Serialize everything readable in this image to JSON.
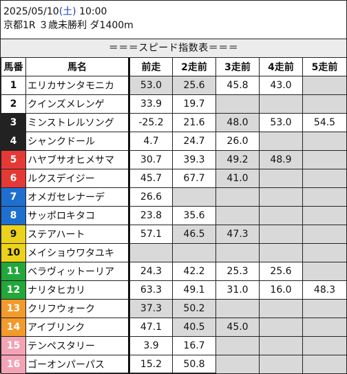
{
  "header": {
    "date": "2025/05/10",
    "dow_open": "(",
    "dow": "土",
    "dow_close": ")",
    "time": "10:00",
    "race": "京都1R ３歳未勝利 ダ1400m"
  },
  "banner": "＝＝＝スピード指数表＝＝＝",
  "columns": [
    "馬番",
    "馬名",
    "前走",
    "2走前",
    "3走前",
    "4走前",
    "5走前"
  ],
  "frame_colors": {
    "1": "#ffffff",
    "2": "#ffffff",
    "3": "#222222",
    "4": "#222222",
    "5": "#e53935",
    "6": "#e53935",
    "7": "#1e6fd0",
    "8": "#1e6fd0",
    "9": "#ecd21a",
    "10": "#ecd21a",
    "11": "#22a83a",
    "12": "#22a83a",
    "13": "#f39a2b",
    "14": "#f39a2b",
    "15": "#f4a3b4",
    "16": "#f4a3b4"
  },
  "rows": [
    {
      "num": "1",
      "name": "エリカサンタモニカ",
      "vals": [
        "53.0",
        "25.6",
        "45.8",
        "43.0",
        ""
      ],
      "hl": [
        true,
        true,
        false,
        false,
        false
      ]
    },
    {
      "num": "2",
      "name": "クインズメレンゲ",
      "vals": [
        "33.9",
        "19.7",
        "",
        "",
        ""
      ],
      "hl": [
        false,
        false,
        false,
        false,
        false
      ]
    },
    {
      "num": "3",
      "name": "ミンストレルソング",
      "vals": [
        "-25.2",
        "21.6",
        "48.0",
        "53.0",
        "54.5"
      ],
      "hl": [
        false,
        false,
        true,
        false,
        false
      ]
    },
    {
      "num": "4",
      "name": "シャンクドール",
      "vals": [
        "4.7",
        "24.7",
        "26.0",
        "",
        ""
      ],
      "hl": [
        false,
        false,
        false,
        false,
        false
      ]
    },
    {
      "num": "5",
      "name": "ハヤブサオヒメサマ",
      "vals": [
        "30.7",
        "39.3",
        "49.2",
        "48.9",
        ""
      ],
      "hl": [
        false,
        false,
        true,
        true,
        false
      ]
    },
    {
      "num": "6",
      "name": "ルクスデイジー",
      "vals": [
        "45.7",
        "67.7",
        "41.0",
        "",
        ""
      ],
      "hl": [
        false,
        false,
        true,
        false,
        false
      ]
    },
    {
      "num": "7",
      "name": "オメガセレナーデ",
      "vals": [
        "26.6",
        "",
        "",
        "",
        ""
      ],
      "hl": [
        false,
        false,
        false,
        false,
        false
      ]
    },
    {
      "num": "8",
      "name": "サッポロキタコ",
      "vals": [
        "23.8",
        "35.6",
        "",
        "",
        ""
      ],
      "hl": [
        false,
        false,
        false,
        false,
        false
      ]
    },
    {
      "num": "9",
      "name": "ステアハート",
      "vals": [
        "57.1",
        "46.5",
        "47.3",
        "",
        ""
      ],
      "hl": [
        false,
        true,
        true,
        false,
        false
      ]
    },
    {
      "num": "10",
      "name": "メイショウワタユキ",
      "vals": [
        "",
        "",
        "",
        "",
        ""
      ],
      "hl": [
        false,
        false,
        false,
        false,
        false
      ]
    },
    {
      "num": "11",
      "name": "ベラヴィットーリア",
      "vals": [
        "24.3",
        "42.2",
        "25.3",
        "25.6",
        ""
      ],
      "hl": [
        false,
        false,
        false,
        false,
        false
      ]
    },
    {
      "num": "12",
      "name": "ナリタヒカリ",
      "vals": [
        "63.3",
        "49.1",
        "31.0",
        "16.0",
        "48.3"
      ],
      "hl": [
        false,
        false,
        false,
        false,
        false
      ]
    },
    {
      "num": "13",
      "name": "クリフウォーク",
      "vals": [
        "37.3",
        "50.2",
        "",
        "",
        ""
      ],
      "hl": [
        true,
        true,
        false,
        false,
        false
      ]
    },
    {
      "num": "14",
      "name": "アイブリンク",
      "vals": [
        "47.1",
        "40.5",
        "45.0",
        "",
        ""
      ],
      "hl": [
        false,
        true,
        true,
        false,
        false
      ]
    },
    {
      "num": "15",
      "name": "テンペスタリー",
      "vals": [
        "3.9",
        "16.7",
        "",
        "",
        ""
      ],
      "hl": [
        false,
        false,
        false,
        false,
        false
      ]
    },
    {
      "num": "16",
      "name": "ゴーオンパーパス",
      "vals": [
        "15.2",
        "50.8",
        "",
        "",
        ""
      ],
      "hl": [
        false,
        false,
        false,
        false,
        false
      ]
    }
  ]
}
